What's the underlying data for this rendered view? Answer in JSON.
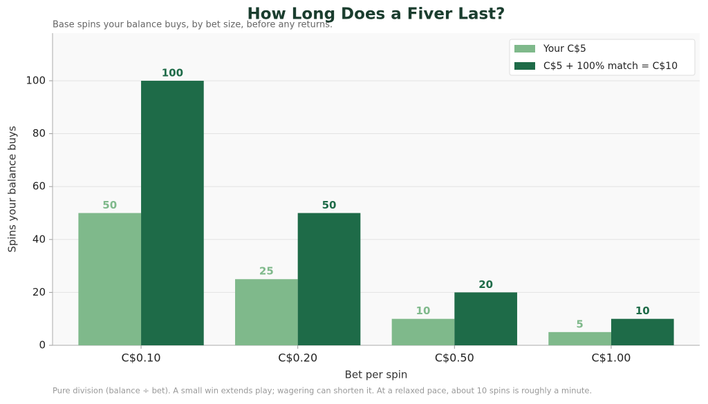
{
  "chart_data": {
    "type": "bar",
    "title": "How Long Does a Fiver Last?",
    "subtitle": "Base spins your balance buys, by bet size, before any returns.",
    "x_label": "Bet per spin",
    "y_label": "Spins your balance buys",
    "footnote": "Pure division (balance ÷ bet). A small win extends play; wagering can shorten it. At a relaxed pace, about 10 spins is roughly a minute.",
    "categories": [
      "C$0.10",
      "C$0.20",
      "C$0.50",
      "C$1.00"
    ],
    "series": [
      {
        "name": "Your C$5",
        "color": "#7fb98b",
        "values": [
          50,
          25,
          10,
          5
        ]
      },
      {
        "name": "C$5 + 100% match = C$10",
        "color": "#1e6b48",
        "values": [
          100,
          50,
          20,
          10
        ]
      }
    ],
    "ylim": [
      0,
      118
    ],
    "yticks": [
      0,
      20,
      40,
      60,
      80,
      100
    ],
    "grid": true,
    "legend": "upper right"
  }
}
